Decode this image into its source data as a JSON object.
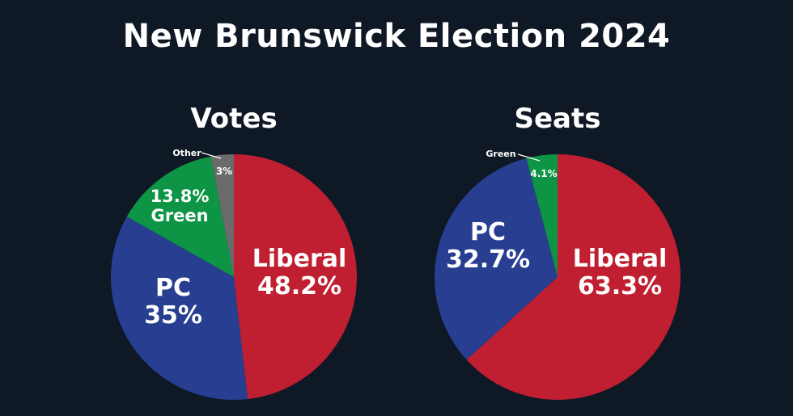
{
  "page_title": "New Brunswick Election 2024",
  "colors": {
    "background": "#0f1825",
    "liberal": "#c01f31",
    "pc": "#273e91",
    "green": "#0d9444",
    "other": "#6b6b6b"
  },
  "chart_data": [
    {
      "type": "pie",
      "title": "Votes",
      "slices": [
        {
          "name": "Liberal",
          "value": 48.2,
          "label": "48.2%",
          "color": "#c01f31"
        },
        {
          "name": "PC",
          "value": 35,
          "label": "35%",
          "color": "#273e91"
        },
        {
          "name": "Green",
          "value": 13.8,
          "label": "13.8%",
          "color": "#0d9444"
        },
        {
          "name": "Other",
          "value": 3,
          "label": "3%",
          "color": "#6b6b6b"
        }
      ]
    },
    {
      "type": "pie",
      "title": "Seats",
      "slices": [
        {
          "name": "Liberal",
          "value": 63.3,
          "label": "63.3%",
          "color": "#c01f31"
        },
        {
          "name": "PC",
          "value": 32.7,
          "label": "32.7%",
          "color": "#273e91"
        },
        {
          "name": "Green",
          "value": 4.1,
          "label": "4.1%",
          "color": "#0d9444"
        }
      ]
    }
  ]
}
